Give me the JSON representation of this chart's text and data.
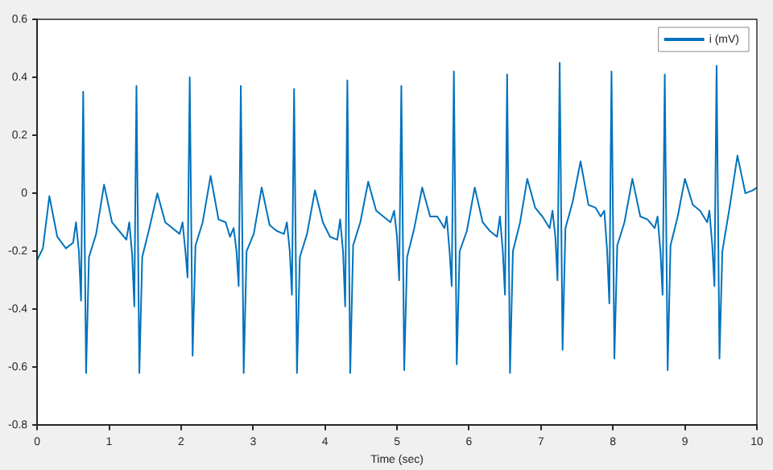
{
  "chart_data": {
    "type": "line",
    "xlabel": "Time (sec)",
    "xlim": [
      0,
      10
    ],
    "xticks": [
      0,
      1,
      2,
      3,
      4,
      5,
      6,
      7,
      8,
      9,
      10
    ],
    "ylim": [
      -0.8,
      0.6
    ],
    "yticks": [
      -0.8,
      -0.6,
      -0.4,
      -0.2,
      0,
      0.2,
      0.4,
      0.6
    ],
    "grid": false,
    "legend": "top right",
    "marker": "none",
    "line_style": "solid",
    "x": [
      0,
      0.08,
      0.17,
      0.28,
      0.4,
      0.5,
      0.54,
      0.58,
      0.61,
      0.64,
      0.68,
      0.72,
      0.82,
      0.93,
      1.04,
      1.14,
      1.24,
      1.28,
      1.32,
      1.35,
      1.38,
      1.42,
      1.46,
      1.56,
      1.67,
      1.78,
      1.88,
      1.98,
      2.02,
      2.06,
      2.09,
      2.12,
      2.16,
      2.2,
      2.3,
      2.41,
      2.52,
      2.62,
      2.68,
      2.73,
      2.77,
      2.8,
      2.83,
      2.87,
      2.91,
      3.01,
      3.12,
      3.23,
      3.33,
      3.43,
      3.47,
      3.51,
      3.54,
      3.57,
      3.61,
      3.65,
      3.75,
      3.86,
      3.97,
      4.07,
      4.17,
      4.21,
      4.25,
      4.28,
      4.31,
      4.35,
      4.39,
      4.49,
      4.6,
      4.71,
      4.81,
      4.91,
      4.96,
      5.0,
      5.03,
      5.06,
      5.1,
      5.14,
      5.24,
      5.35,
      5.46,
      5.56,
      5.66,
      5.69,
      5.73,
      5.76,
      5.79,
      5.83,
      5.87,
      5.97,
      6.08,
      6.19,
      6.29,
      6.39,
      6.43,
      6.47,
      6.5,
      6.53,
      6.57,
      6.61,
      6.71,
      6.81,
      6.92,
      7.02,
      7.12,
      7.16,
      7.2,
      7.23,
      7.26,
      7.3,
      7.34,
      7.44,
      7.55,
      7.66,
      7.76,
      7.83,
      7.88,
      7.92,
      7.95,
      7.98,
      8.02,
      8.06,
      8.16,
      8.27,
      8.38,
      8.48,
      8.58,
      8.62,
      8.66,
      8.69,
      8.72,
      8.76,
      8.8,
      8.9,
      9.0,
      9.11,
      9.21,
      9.31,
      9.34,
      9.38,
      9.41,
      9.44,
      9.48,
      9.52,
      9.62,
      9.73,
      9.84,
      9.94,
      10
    ],
    "series": [
      {
        "name": "i (mV)",
        "color": "#0072bd",
        "values": [
          -0.23,
          -0.19,
          -0.01,
          -0.15,
          -0.19,
          -0.17,
          -0.1,
          -0.2,
          -0.37,
          0.35,
          -0.62,
          -0.22,
          -0.14,
          0.03,
          -0.1,
          -0.13,
          -0.16,
          -0.1,
          -0.21,
          -0.39,
          0.37,
          -0.62,
          -0.22,
          -0.12,
          0.0,
          -0.1,
          -0.12,
          -0.14,
          -0.1,
          -0.2,
          -0.29,
          0.4,
          -0.56,
          -0.18,
          -0.1,
          0.06,
          -0.09,
          -0.1,
          -0.15,
          -0.12,
          -0.2,
          -0.32,
          0.37,
          -0.62,
          -0.2,
          -0.14,
          0.02,
          -0.11,
          -0.13,
          -0.14,
          -0.1,
          -0.2,
          -0.35,
          0.36,
          -0.62,
          -0.22,
          -0.14,
          0.01,
          -0.1,
          -0.15,
          -0.16,
          -0.09,
          -0.2,
          -0.39,
          0.39,
          -0.62,
          -0.18,
          -0.1,
          0.04,
          -0.06,
          -0.08,
          -0.1,
          -0.06,
          -0.15,
          -0.3,
          0.37,
          -0.61,
          -0.22,
          -0.12,
          0.02,
          -0.08,
          -0.08,
          -0.12,
          -0.08,
          -0.2,
          -0.32,
          0.42,
          -0.59,
          -0.2,
          -0.13,
          0.02,
          -0.1,
          -0.13,
          -0.15,
          -0.08,
          -0.2,
          -0.35,
          0.41,
          -0.62,
          -0.2,
          -0.1,
          0.05,
          -0.05,
          -0.08,
          -0.12,
          -0.06,
          -0.15,
          -0.3,
          0.45,
          -0.54,
          -0.12,
          -0.03,
          0.11,
          -0.04,
          -0.05,
          -0.08,
          -0.06,
          -0.2,
          -0.38,
          0.42,
          -0.57,
          -0.18,
          -0.1,
          0.05,
          -0.08,
          -0.09,
          -0.12,
          -0.08,
          -0.2,
          -0.35,
          0.41,
          -0.61,
          -0.18,
          -0.08,
          0.05,
          -0.04,
          -0.06,
          -0.1,
          -0.06,
          -0.18,
          -0.32,
          0.44,
          -0.57,
          -0.2,
          -0.05,
          0.13,
          0.0,
          0.01,
          0.02
        ]
      }
    ]
  }
}
